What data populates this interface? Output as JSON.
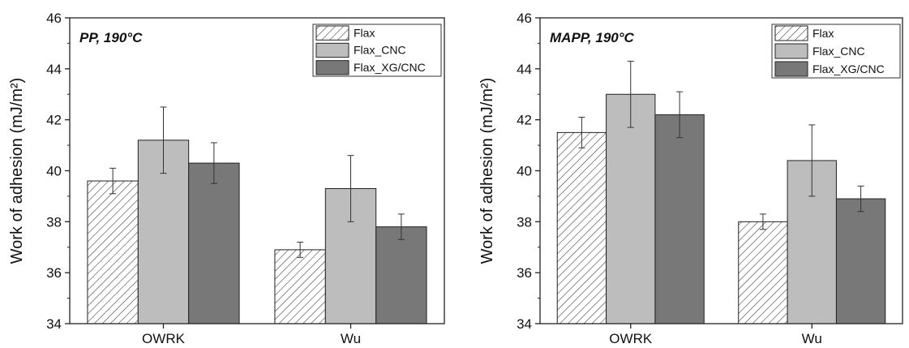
{
  "chart_data": [
    {
      "type": "bar",
      "annotation": "PP, 190°C",
      "xlabel": "",
      "ylabel": "Work of adhesion (mJ/m²)",
      "ylim": [
        34,
        46
      ],
      "yticks": [
        34,
        36,
        38,
        40,
        42,
        44,
        46
      ],
      "categories": [
        "OWRK",
        "Wu"
      ],
      "legend_position": "top-right",
      "grid": false,
      "series": [
        {
          "name": "Flax",
          "values": [
            39.6,
            36.9
          ],
          "errors": [
            0.5,
            0.3
          ],
          "fill": "hatch",
          "color": "#ffffff"
        },
        {
          "name": "Flax_CNC",
          "values": [
            41.2,
            39.3
          ],
          "errors": [
            1.3,
            1.3
          ],
          "fill": "solid",
          "color": "#bdbdbd"
        },
        {
          "name": "Flax_XG/CNC",
          "values": [
            40.3,
            37.8
          ],
          "errors": [
            0.8,
            0.5
          ],
          "fill": "solid",
          "color": "#787878"
        }
      ]
    },
    {
      "type": "bar",
      "annotation": "MAPP, 190°C",
      "xlabel": "",
      "ylabel": "Work of adhesion (mJ/m²)",
      "ylim": [
        34,
        46
      ],
      "yticks": [
        34,
        36,
        38,
        40,
        42,
        44,
        46
      ],
      "categories": [
        "OWRK",
        "Wu"
      ],
      "legend_position": "top-right",
      "grid": false,
      "series": [
        {
          "name": "Flax",
          "values": [
            41.5,
            38.0
          ],
          "errors": [
            0.6,
            0.3
          ],
          "fill": "hatch",
          "color": "#ffffff"
        },
        {
          "name": "Flax_CNC",
          "values": [
            43.0,
            40.4
          ],
          "errors": [
            1.3,
            1.4
          ],
          "fill": "solid",
          "color": "#bdbdbd"
        },
        {
          "name": "Flax_XG/CNC",
          "values": [
            42.2,
            38.9
          ],
          "errors": [
            0.9,
            0.5
          ],
          "fill": "solid",
          "color": "#787878"
        }
      ]
    }
  ]
}
